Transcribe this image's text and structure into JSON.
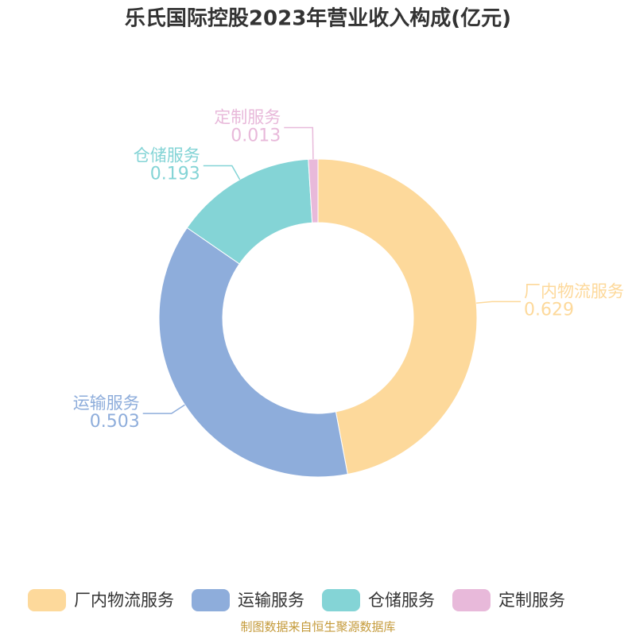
{
  "chart_data": {
    "type": "donut",
    "title": "乐氏国际控股2023年营业收入构成(亿元)",
    "categories": [
      "厂内物流服务",
      "运输服务",
      "仓储服务",
      "定制服务"
    ],
    "values": [
      0.629,
      0.503,
      0.193,
      0.013
    ],
    "colors": [
      "#fdd99b",
      "#8eaddb",
      "#84d4d6",
      "#e8b9da"
    ],
    "legend": "bottom",
    "source": "制图数据来自恒生聚源数据库"
  }
}
